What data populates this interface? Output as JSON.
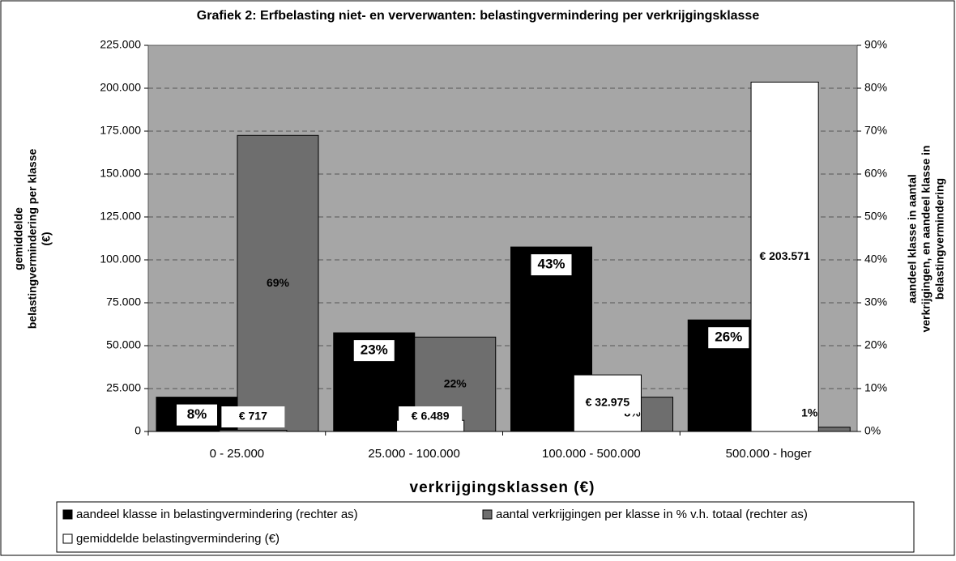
{
  "chart_data": {
    "type": "bar",
    "title": "Grafiek 2: Erfbelasting niet- en ververwanten: belastingvermindering per verkrijgingsklasse",
    "categories": [
      "0 - 25.000",
      "25.000 - 100.000",
      "100.000 - 500.000",
      "500.000 - hoger"
    ],
    "series": [
      {
        "name": "aandeel klasse in belastingvermindering (rechter as)",
        "color": "#000000",
        "axis": "y2",
        "values": [
          8,
          23,
          43,
          26
        ],
        "value_labels": [
          "8%",
          "23%",
          "43%",
          "26%"
        ]
      },
      {
        "name": "aantal verkrijgingen per klasse in % v.h. totaal (rechter as)",
        "color": "#6e6e6e",
        "axis": "y2",
        "values": [
          69,
          22,
          8,
          1
        ],
        "value_labels": [
          "69%",
          "22%",
          "8%",
          "1%"
        ]
      },
      {
        "name": "gemiddelde belastingvermindering (€)",
        "color": "#ffffff",
        "values": [
          717,
          6489,
          32975,
          203571
        ],
        "value_labels": [
          "€ 717",
          "€ 6.489",
          "€ 32.975",
          "€ 203.571"
        ]
      }
    ],
    "x_label": "verkrijgingsklassen (€)",
    "y_label": [
      "gemiddelde",
      "belastingvermindering  per klasse",
      "(€)"
    ],
    "y2_label": [
      "aandeel klasse in aantal",
      "verkrijgingen, en aandeel klasse in",
      "belastingvermindering"
    ],
    "ylim": [
      0,
      225000
    ],
    "yticks": [
      {
        "value": 0,
        "label": "0"
      },
      {
        "value": 25000,
        "label": "25.000"
      },
      {
        "value": 50000,
        "label": "50.000"
      },
      {
        "value": 75000,
        "label": "75.000"
      },
      {
        "value": 100000,
        "label": "100.000"
      },
      {
        "value": 125000,
        "label": "125.000"
      },
      {
        "value": 150000,
        "label": "150.000"
      },
      {
        "value": 175000,
        "label": "175.000"
      },
      {
        "value": 200000,
        "label": "200.000"
      },
      {
        "value": 225000,
        "label": "225.000"
      }
    ],
    "y2lim": [
      0,
      90
    ],
    "y2ticks": [
      {
        "value": 0,
        "label": "0%"
      },
      {
        "value": 10,
        "label": "10%"
      },
      {
        "value": 20,
        "label": "20%"
      },
      {
        "value": 30,
        "label": "30%"
      },
      {
        "value": 40,
        "label": "40%"
      },
      {
        "value": 50,
        "label": "50%"
      },
      {
        "value": 60,
        "label": "60%"
      },
      {
        "value": 70,
        "label": "70%"
      },
      {
        "value": 80,
        "label": "80%"
      },
      {
        "value": 90,
        "label": "90%"
      }
    ],
    "grid": true
  }
}
